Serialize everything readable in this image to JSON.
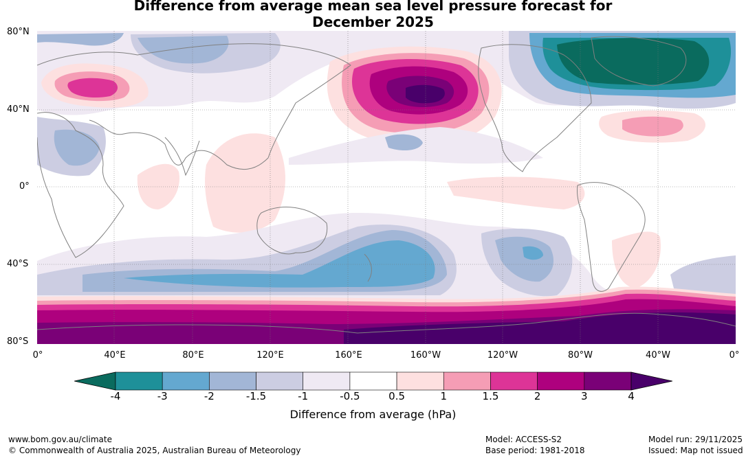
{
  "title": {
    "line1": "Difference from average mean sea level pressure forecast for",
    "line2": "December 2025"
  },
  "axes": {
    "lat_labels": [
      "80°N",
      "40°N",
      "0°",
      "40°S",
      "80°S"
    ],
    "lon_labels": [
      "0°",
      "40°E",
      "80°E",
      "120°E",
      "160°E",
      "160°W",
      "120°W",
      "80°W",
      "40°W",
      "0°"
    ]
  },
  "chart_data": {
    "type": "heatmap",
    "colorbar": {
      "ticks": [
        "-4",
        "-3",
        "-2",
        "-1.5",
        "-1",
        "-0.5",
        "0.5",
        "1",
        "1.5",
        "2",
        "3",
        "4"
      ],
      "colors": [
        "#0a6b5e",
        "#1e9099",
        "#64a8d0",
        "#a2b6d6",
        "#cccde2",
        "#efe9f3",
        "#ffffff",
        "#fde0e0",
        "#f59db5",
        "#dd3497",
        "#ae017e",
        "#7a0177",
        "#49006a"
      ],
      "label": "Difference from average (hPa)"
    }
  },
  "colors": {
    "land_outline": "#808080",
    "grid": "#777777"
  },
  "footer": {
    "url": "www.bom.gov.au/climate",
    "copyright": "© Commonwealth of Australia 2025, Australian Bureau of Meteorology",
    "model": "Model: ACCESS-S2",
    "base_period": "Base period: 1981-2018",
    "model_run": "Model run: 29/11/2025",
    "issued": "Issued: Map not issued"
  }
}
